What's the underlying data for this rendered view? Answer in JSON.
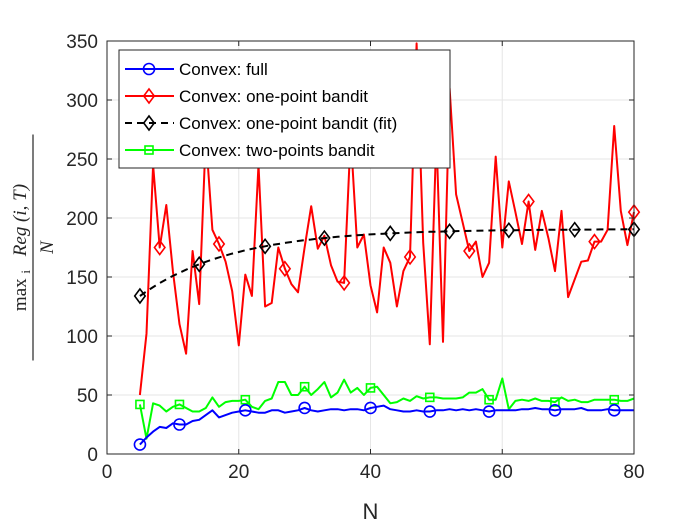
{
  "chart_data": {
    "type": "line",
    "title": "",
    "xlabel": "N",
    "ylabel": {
      "op": "max",
      "sub": "i",
      "func": "Reg",
      "args": "(i, T)",
      "denominator": "N"
    },
    "xlim": [
      0,
      80
    ],
    "ylim": [
      0,
      350
    ],
    "xticks": [
      0,
      20,
      40,
      60,
      80
    ],
    "yticks": [
      0,
      50,
      100,
      150,
      200,
      250,
      300,
      350
    ],
    "grid": true,
    "legend_position": "top-left",
    "series": [
      {
        "name": "Convex: full",
        "color": "#0000ff",
        "line_style": "solid",
        "marker": "circle",
        "marker_x": [
          5,
          11,
          21,
          30,
          40,
          49,
          58,
          68,
          77
        ],
        "x": [
          5,
          6,
          7,
          8,
          9,
          10,
          11,
          12,
          13,
          14,
          15,
          16,
          17,
          18,
          19,
          20,
          21,
          22,
          23,
          24,
          25,
          26,
          27,
          28,
          29,
          30,
          31,
          32,
          33,
          34,
          35,
          36,
          37,
          38,
          39,
          40,
          41,
          42,
          43,
          44,
          45,
          46,
          47,
          48,
          49,
          50,
          51,
          52,
          53,
          54,
          55,
          56,
          57,
          58,
          59,
          60,
          61,
          62,
          63,
          64,
          65,
          66,
          67,
          68,
          69,
          70,
          71,
          72,
          73,
          74,
          75,
          76,
          77,
          78,
          79,
          80
        ],
        "y": [
          8,
          14,
          19,
          23,
          22,
          26,
          25,
          25,
          28,
          29,
          33,
          37,
          31,
          33,
          35,
          36,
          37,
          36,
          35,
          35,
          37,
          37,
          35,
          36,
          37,
          39,
          37,
          36,
          37,
          38,
          38,
          37,
          38,
          38,
          37,
          39,
          40,
          41,
          38,
          37,
          36,
          36,
          37,
          36,
          36,
          37,
          37,
          38,
          37,
          38,
          37,
          38,
          37,
          36,
          37,
          37,
          37,
          37,
          38,
          38,
          39,
          38,
          38,
          37,
          38,
          38,
          38,
          39,
          37,
          37,
          37,
          38,
          37,
          37,
          37,
          37
        ]
      },
      {
        "name": "Convex: one-point bandit",
        "color": "#ff0000",
        "line_style": "solid",
        "marker": "diamond",
        "marker_x": [
          8,
          17,
          27,
          36,
          46,
          55,
          64,
          74,
          80
        ],
        "x": [
          5,
          6,
          7,
          8,
          9,
          10,
          11,
          12,
          13,
          14,
          15,
          16,
          17,
          18,
          19,
          20,
          21,
          22,
          23,
          24,
          25,
          26,
          27,
          28,
          29,
          30,
          31,
          32,
          33,
          34,
          35,
          36,
          37,
          38,
          39,
          40,
          41,
          42,
          43,
          44,
          45,
          46,
          47,
          48,
          49,
          50,
          51,
          52,
          53,
          54,
          55,
          56,
          57,
          58,
          59,
          60,
          61,
          62,
          63,
          64,
          65,
          66,
          67,
          68,
          69,
          70,
          71,
          72,
          73,
          74,
          75,
          76,
          77,
          78,
          79,
          80
        ],
        "y": [
          50,
          102,
          245,
          175,
          211,
          155,
          110,
          85,
          172,
          127,
          270,
          190,
          178,
          163,
          138,
          92,
          152,
          134,
          245,
          125,
          128,
          175,
          157,
          144,
          137,
          175,
          210,
          174,
          185,
          160,
          146,
          145,
          270,
          175,
          186,
          143,
          120,
          175,
          162,
          125,
          155,
          167,
          348,
          179,
          93,
          270,
          95,
          310,
          220,
          196,
          172,
          180,
          150,
          162,
          252,
          175,
          231,
          205,
          178,
          214,
          173,
          206,
          183,
          155,
          206,
          133,
          148,
          163,
          164,
          180,
          180,
          190,
          278,
          206,
          177,
          205
        ]
      },
      {
        "name": "Convex: one-point bandit (fit)",
        "color": "#000000",
        "line_style": "dashed",
        "marker": "diamond",
        "marker_x": [
          5,
          14,
          24,
          33,
          43,
          52,
          61,
          71,
          80
        ],
        "x": [
          5,
          6,
          7,
          8,
          9,
          10,
          11,
          12,
          13,
          14,
          15,
          16,
          17,
          18,
          19,
          20,
          21,
          22,
          23,
          24,
          25,
          26,
          27,
          28,
          29,
          30,
          31,
          32,
          33,
          34,
          35,
          36,
          37,
          38,
          39,
          40,
          41,
          42,
          43,
          44,
          45,
          46,
          47,
          48,
          49,
          50,
          51,
          52,
          53,
          54,
          55,
          56,
          57,
          58,
          59,
          60,
          61,
          62,
          63,
          64,
          65,
          66,
          67,
          68,
          69,
          70,
          71,
          72,
          73,
          74,
          75,
          76,
          77,
          78,
          79,
          80
        ],
        "y": [
          133.9,
          137.8,
          141.4,
          144.8,
          148.0,
          150.9,
          153.6,
          156.2,
          158.6,
          160.8,
          162.9,
          164.8,
          166.6,
          168.2,
          169.8,
          171.2,
          172.6,
          173.8,
          175.0,
          176.0,
          177.1,
          178.0,
          178.9,
          179.7,
          180.5,
          181.2,
          181.8,
          182.5,
          183.0,
          183.6,
          184.1,
          184.5,
          185.0,
          185.4,
          185.7,
          186.1,
          186.4,
          186.7,
          187.0,
          187.2,
          187.5,
          187.7,
          187.9,
          188.1,
          188.3,
          188.4,
          188.6,
          188.7,
          188.9,
          189.0,
          189.1,
          189.2,
          189.3,
          189.4,
          189.5,
          189.6,
          189.6,
          189.7,
          189.8,
          189.8,
          189.9,
          189.9,
          190.0,
          190.0,
          190.1,
          190.1,
          190.1,
          190.2,
          190.2,
          190.2,
          190.3,
          190.3,
          190.3,
          190.3,
          190.4,
          190.4
        ]
      },
      {
        "name": "Convex: two-points bandit",
        "color": "#00ff00",
        "line_style": "solid",
        "marker": "square",
        "marker_x": [
          5,
          11,
          21,
          30,
          40,
          49,
          58,
          68,
          77
        ],
        "x": [
          5,
          6,
          7,
          8,
          9,
          10,
          11,
          12,
          13,
          14,
          15,
          16,
          17,
          18,
          19,
          20,
          21,
          22,
          23,
          24,
          25,
          26,
          27,
          28,
          29,
          30,
          31,
          32,
          33,
          34,
          35,
          36,
          37,
          38,
          39,
          40,
          41,
          42,
          43,
          44,
          45,
          46,
          47,
          48,
          49,
          50,
          51,
          52,
          53,
          54,
          55,
          56,
          57,
          58,
          59,
          60,
          61,
          62,
          63,
          64,
          65,
          66,
          67,
          68,
          69,
          70,
          71,
          72,
          73,
          74,
          75,
          76,
          77,
          78,
          79,
          80
        ],
        "y": [
          42,
          13,
          43,
          41,
          36,
          40,
          42,
          39,
          36,
          36,
          39,
          48,
          40,
          44,
          45,
          45,
          46,
          40,
          38,
          45,
          47,
          61,
          61,
          50,
          50,
          57,
          50,
          55,
          61,
          48,
          52,
          63,
          52,
          56,
          50,
          56,
          57,
          50,
          43,
          44,
          47,
          45,
          49,
          47,
          48,
          48,
          47,
          47,
          47,
          48,
          52,
          52,
          55,
          46,
          46,
          64,
          38,
          45,
          46,
          45,
          47,
          45,
          45,
          44,
          48,
          45,
          46,
          44,
          44,
          46,
          46,
          46,
          46,
          45,
          45,
          47
        ]
      }
    ]
  }
}
